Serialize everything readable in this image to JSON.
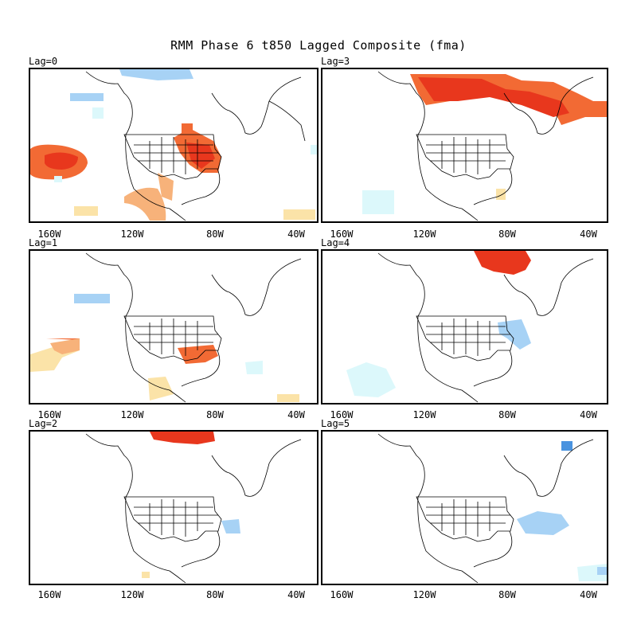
{
  "title": "RMM Phase 6 t850 Lagged Composite (fma)",
  "colors": {
    "red": "#e8371d",
    "orange": "#f26a34",
    "light_orange": "#f7b27a",
    "pale_yellow": "#fbe3a8",
    "light_blue": "#a7d2f5",
    "pale_cyan": "#dcf8fb",
    "blue": "#4a93df",
    "coast": "#000000"
  },
  "panels": [
    {
      "label": "Lag=0",
      "ticks": [
        "160W",
        "120W",
        "80W",
        "40W"
      ]
    },
    {
      "label": "Lag=3",
      "ticks": [
        "160W",
        "120W",
        "80W",
        "40W"
      ]
    },
    {
      "label": "Lag=1",
      "ticks": [
        "160W",
        "120W",
        "80W",
        "40W"
      ]
    },
    {
      "label": "Lag=4",
      "ticks": [
        "160W",
        "120W",
        "80W",
        "40W"
      ]
    },
    {
      "label": "Lag=2",
      "ticks": [
        "160W",
        "120W",
        "80W",
        "40W"
      ]
    },
    {
      "label": "Lag=5",
      "ticks": [
        "160W",
        "120W",
        "80W",
        "40W"
      ]
    }
  ]
}
